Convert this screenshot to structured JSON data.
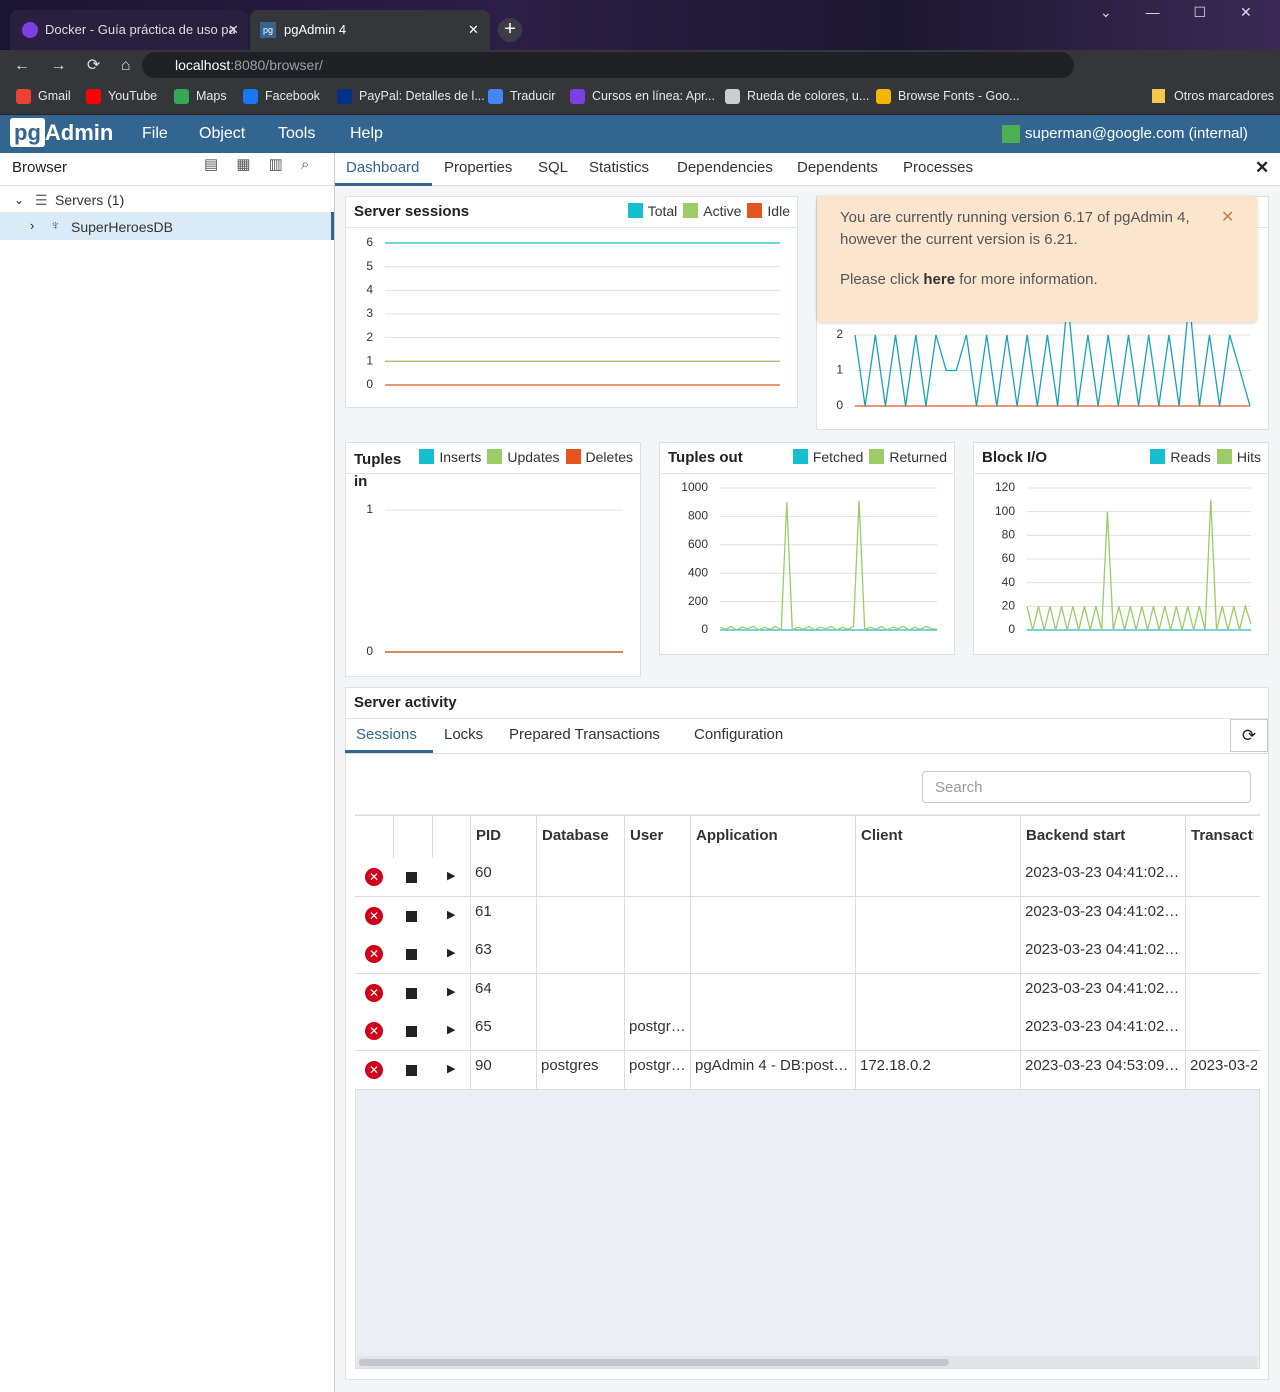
{
  "browser_window": {
    "tabs": [
      "Docker - Guía práctica de uso pa",
      "pgAdmin 4"
    ],
    "url_host": "localhost",
    "url_path": ":8080/browser/",
    "bookmarks": [
      "Gmail",
      "YouTube",
      "Maps",
      "Facebook",
      "PayPal: Detalles de l...",
      "Traducir",
      "Cursos en línea: Apr...",
      "Rueda de colores, u...",
      "Browse Fonts - Goo..."
    ],
    "other_bookmarks": "Otros marcadores"
  },
  "app_header": {
    "logo_pg": "pg",
    "logo_rest": "Admin",
    "menus": [
      "File",
      "Object",
      "Tools",
      "Help"
    ],
    "user": "superman@google.com (internal)"
  },
  "browser_panel": {
    "title": "Browser",
    "tree": [
      "Servers (1)",
      "SuperHeroesDB"
    ]
  },
  "main_tabs": [
    "Dashboard",
    "Properties",
    "SQL",
    "Statistics",
    "Dependencies",
    "Dependents",
    "Processes"
  ],
  "notification": {
    "line1": "You are currently running version 6.17 of pgAdmin 4,",
    "line2": "however the current version is 6.21.",
    "line3_before": "Please click ",
    "link": "here",
    "line3_after": " for more information."
  },
  "charts": [
    {
      "type": "line",
      "title": "Server sessions",
      "ylim": [
        0,
        6
      ],
      "yticks": [
        0,
        1,
        2,
        3,
        4,
        5,
        6
      ],
      "grid": true,
      "series": [
        {
          "name": "Total",
          "color": "#17becf",
          "values": [
            6,
            6,
            6,
            6,
            6,
            6,
            6,
            6,
            6,
            6,
            6,
            6,
            6,
            6,
            6,
            6,
            6,
            6,
            6,
            6
          ]
        },
        {
          "name": "Active",
          "color": "#9ccc65",
          "values": [
            1,
            1,
            1,
            1,
            1,
            1,
            1,
            1,
            1,
            1,
            1,
            1,
            1,
            1,
            1,
            1,
            1,
            1,
            1,
            1
          ]
        },
        {
          "name": "Idle",
          "color": "#e6541f",
          "values": [
            0,
            0,
            0,
            0,
            0,
            0,
            0,
            0,
            0,
            0,
            0,
            0,
            0,
            0,
            0,
            0,
            0,
            0,
            0,
            0
          ]
        }
      ]
    },
    {
      "type": "line",
      "ylim": [
        0,
        3
      ],
      "yticks": [
        0,
        1,
        2
      ],
      "grid": true,
      "series": [
        {
          "color": "#e6541f",
          "values": [
            0,
            0,
            0,
            0,
            0,
            0,
            0,
            0,
            0,
            0,
            0,
            0,
            0,
            0,
            0,
            0,
            0,
            0,
            0,
            0,
            0,
            0,
            0,
            0,
            0,
            0,
            0,
            0,
            0,
            0,
            0,
            0,
            0,
            0,
            0,
            0,
            0,
            0,
            0,
            0
          ]
        },
        {
          "color": "#17a2b8",
          "values": [
            2,
            0,
            2,
            0,
            2,
            0,
            2,
            0,
            2,
            1,
            1,
            2,
            0,
            2,
            0,
            2,
            0,
            2,
            0,
            2,
            0,
            3,
            0,
            2,
            0,
            2,
            0,
            2,
            0,
            2,
            0,
            2,
            0,
            3,
            0,
            2,
            0,
            2,
            1,
            0
          ]
        }
      ]
    },
    {
      "type": "line",
      "title": "Tuples in",
      "ylim": [
        0,
        1
      ],
      "yticks": [
        0,
        1
      ],
      "grid": true,
      "series": [
        {
          "name": "Inserts",
          "color": "#17becf",
          "values": [
            0,
            0,
            0,
            0,
            0,
            0,
            0,
            0,
            0,
            0,
            0,
            0,
            0,
            0,
            0,
            0,
            0,
            0,
            0,
            0
          ]
        },
        {
          "name": "Updates",
          "color": "#9ccc65",
          "values": [
            0,
            0,
            0,
            0,
            0,
            0,
            0,
            0,
            0,
            0,
            0,
            0,
            0,
            0,
            0,
            0,
            0,
            0,
            0,
            0
          ]
        },
        {
          "name": "Deletes",
          "color": "#e6541f",
          "values": [
            0,
            0,
            0,
            0,
            0,
            0,
            0,
            0,
            0,
            0,
            0,
            0,
            0,
            0,
            0,
            0,
            0,
            0,
            0,
            0
          ]
        }
      ]
    },
    {
      "type": "line",
      "title": "Tuples out",
      "ylim": [
        0,
        1000
      ],
      "yticks": [
        0,
        200,
        400,
        600,
        800,
        1000
      ],
      "grid": true,
      "series": [
        {
          "name": "Fetched",
          "color": "#17becf",
          "values": [
            0,
            0,
            0,
            0,
            0,
            0,
            0,
            0,
            0,
            0,
            0,
            0,
            0,
            0,
            0,
            0,
            0,
            0,
            0,
            0,
            0,
            0,
            0,
            0,
            0,
            0,
            0,
            0,
            0,
            0,
            0,
            0,
            0,
            0,
            0,
            0,
            0,
            0,
            0,
            0
          ]
        },
        {
          "name": "Returned",
          "color": "#9ccc65",
          "values": [
            20,
            5,
            25,
            0,
            20,
            10,
            25,
            0,
            20,
            5,
            25,
            0,
            900,
            0,
            20,
            5,
            25,
            0,
            20,
            10,
            25,
            0,
            20,
            5,
            25,
            910,
            0,
            20,
            5,
            25,
            0,
            20,
            10,
            25,
            0,
            20,
            5,
            25,
            10,
            5
          ]
        }
      ]
    },
    {
      "type": "line",
      "title": "Block I/O",
      "ylim": [
        0,
        120
      ],
      "yticks": [
        0,
        20,
        40,
        60,
        80,
        100,
        120
      ],
      "grid": true,
      "series": [
        {
          "name": "Reads",
          "color": "#17becf",
          "values": [
            0,
            0,
            0,
            0,
            0,
            0,
            0,
            0,
            0,
            0,
            0,
            0,
            0,
            0,
            0,
            0,
            0,
            0,
            0,
            0,
            0,
            0,
            0,
            0,
            0,
            0,
            0,
            0,
            0,
            0,
            0,
            0,
            0,
            0,
            0,
            0,
            0,
            0,
            0,
            0
          ]
        },
        {
          "name": "Hits",
          "color": "#9ccc65",
          "values": [
            20,
            0,
            20,
            0,
            20,
            0,
            20,
            0,
            20,
            0,
            20,
            0,
            20,
            0,
            100,
            0,
            20,
            0,
            20,
            0,
            20,
            0,
            20,
            0,
            20,
            0,
            20,
            0,
            20,
            0,
            20,
            0,
            110,
            0,
            20,
            0,
            20,
            0,
            20,
            5
          ]
        }
      ]
    }
  ],
  "server_activity": {
    "title": "Server activity",
    "tabs": [
      "Sessions",
      "Locks",
      "Prepared Transactions",
      "Configuration"
    ],
    "search_placeholder": "Search",
    "columns": [
      "PID",
      "Database",
      "User",
      "Application",
      "Client",
      "Backend start",
      "Transactio"
    ],
    "rows": [
      [
        60,
        null,
        null,
        null,
        null,
        "2023-03-23 04:41:02…",
        null
      ],
      [
        61,
        null,
        null,
        null,
        null,
        "2023-03-23 04:41:02…",
        null
      ],
      [
        63,
        null,
        null,
        null,
        null,
        "2023-03-23 04:41:02…",
        null
      ],
      [
        64,
        null,
        null,
        null,
        null,
        "2023-03-23 04:41:02…",
        null
      ],
      [
        65,
        null,
        "postgr…",
        null,
        null,
        "2023-03-23 04:41:02…",
        null
      ],
      [
        90,
        "postgres",
        "postgr…",
        "pgAdmin 4 - DB:post…",
        "172.18.0.2",
        "2023-03-23 04:53:09…",
        "2023-03-2"
      ]
    ]
  }
}
